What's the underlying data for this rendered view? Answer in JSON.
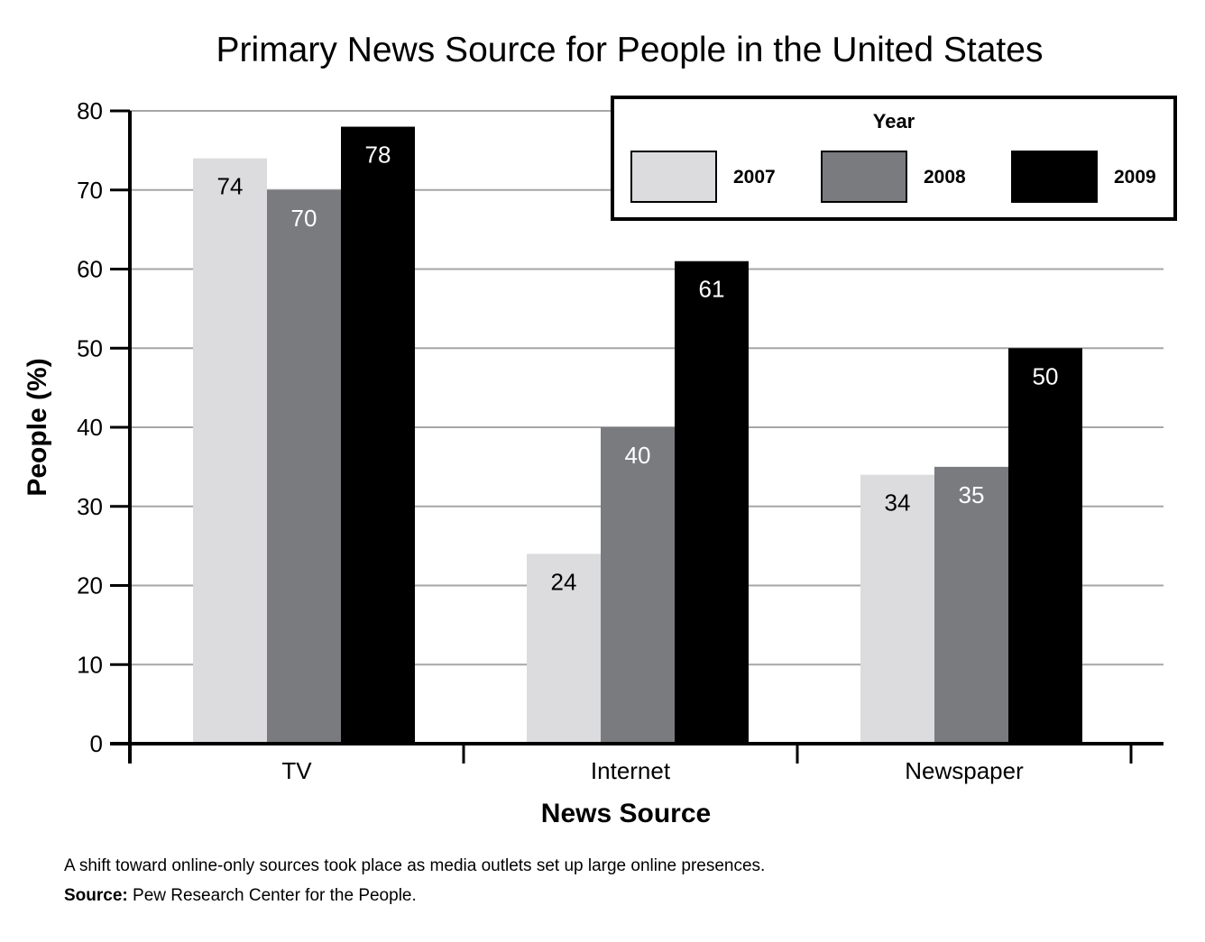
{
  "chart_data": {
    "type": "bar",
    "title": "Primary News Source for People in the United States",
    "xlabel": "News Source",
    "ylabel": "People (%)",
    "categories": [
      "TV",
      "Internet",
      "Newspaper"
    ],
    "ylim": [
      0,
      80
    ],
    "yticks": [
      0,
      10,
      20,
      30,
      40,
      50,
      60,
      70,
      80
    ],
    "grid": true,
    "legend": {
      "title": "Year",
      "placement": "top-right"
    },
    "series": [
      {
        "name": "2007",
        "color": "#dcdcde",
        "label_color": "#000000",
        "values": [
          74,
          24,
          34
        ]
      },
      {
        "name": "2008",
        "color": "#7a7b7f",
        "label_color": "#ffffff",
        "values": [
          70,
          40,
          35
        ]
      },
      {
        "name": "2009",
        "color": "#000000",
        "label_color": "#ffffff",
        "values": [
          78,
          61,
          50
        ]
      }
    ]
  },
  "caption": {
    "note": "A shift toward online-only sources took place as media outlets set up large online presences.",
    "source_label": "Source:",
    "source_text": "Pew Research Center for the People."
  }
}
